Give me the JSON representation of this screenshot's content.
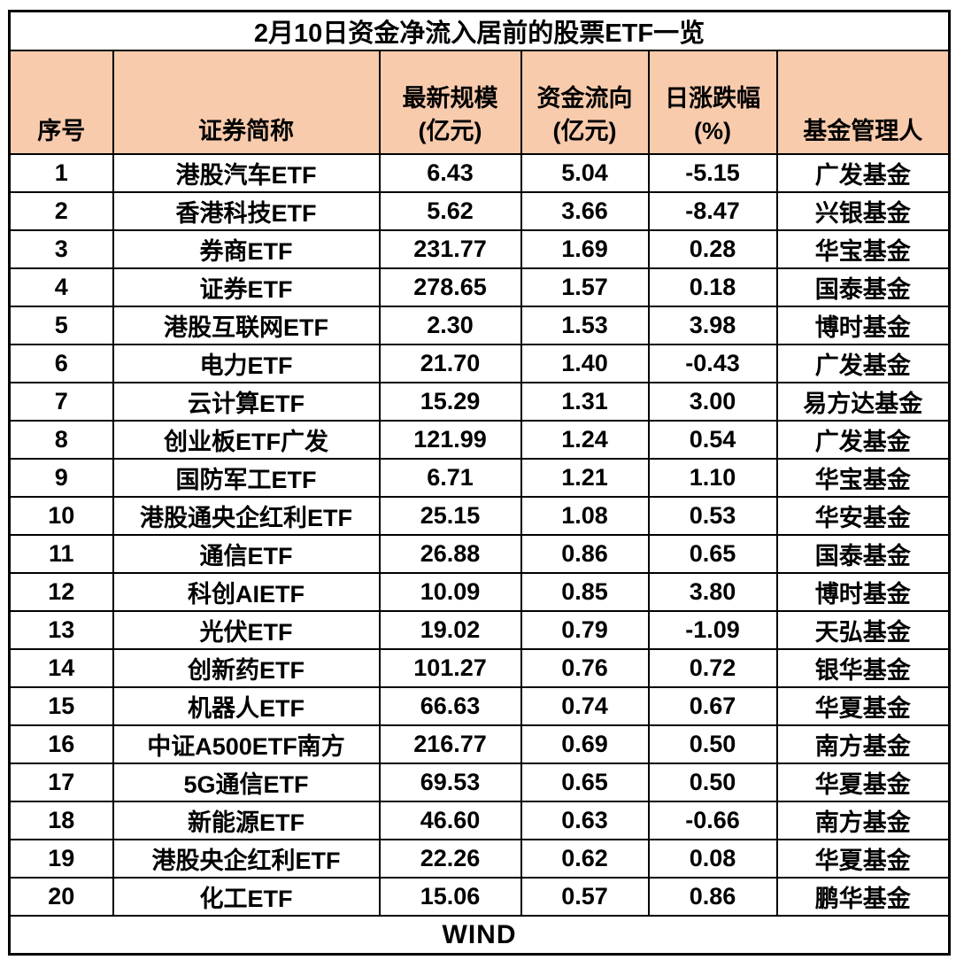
{
  "title": "2月10日资金净流入居前的股票ETF一览",
  "chart_data": {
    "type": "table",
    "title": "2月10日资金净流入居前的股票ETF一览",
    "columns": [
      {
        "key": "index",
        "lines": [
          "序号"
        ]
      },
      {
        "key": "name",
        "lines": [
          "证券简称"
        ]
      },
      {
        "key": "scale",
        "lines": [
          "最新规模",
          "(亿元)"
        ]
      },
      {
        "key": "flow",
        "lines": [
          "资金流向",
          "(亿元)"
        ]
      },
      {
        "key": "change",
        "lines": [
          "日涨跌幅",
          "(%)"
        ]
      },
      {
        "key": "manager",
        "lines": [
          "基金管理人"
        ]
      }
    ],
    "rows": [
      {
        "index": "1",
        "name": "港股汽车ETF",
        "scale": "6.43",
        "flow": "5.04",
        "change": "-5.15",
        "manager": "广发基金"
      },
      {
        "index": "2",
        "name": "香港科技ETF",
        "scale": "5.62",
        "flow": "3.66",
        "change": "-8.47",
        "manager": "兴银基金"
      },
      {
        "index": "3",
        "name": "券商ETF",
        "scale": "231.77",
        "flow": "1.69",
        "change": "0.28",
        "manager": "华宝基金"
      },
      {
        "index": "4",
        "name": "证券ETF",
        "scale": "278.65",
        "flow": "1.57",
        "change": "0.18",
        "manager": "国泰基金"
      },
      {
        "index": "5",
        "name": "港股互联网ETF",
        "scale": "2.30",
        "flow": "1.53",
        "change": "3.98",
        "manager": "博时基金"
      },
      {
        "index": "6",
        "name": "电力ETF",
        "scale": "21.70",
        "flow": "1.40",
        "change": "-0.43",
        "manager": "广发基金"
      },
      {
        "index": "7",
        "name": "云计算ETF",
        "scale": "15.29",
        "flow": "1.31",
        "change": "3.00",
        "manager": "易方达基金"
      },
      {
        "index": "8",
        "name": "创业板ETF广发",
        "scale": "121.99",
        "flow": "1.24",
        "change": "0.54",
        "manager": "广发基金"
      },
      {
        "index": "9",
        "name": "国防军工ETF",
        "scale": "6.71",
        "flow": "1.21",
        "change": "1.10",
        "manager": "华宝基金"
      },
      {
        "index": "10",
        "name": "港股通央企红利ETF",
        "scale": "25.15",
        "flow": "1.08",
        "change": "0.53",
        "manager": "华安基金"
      },
      {
        "index": "11",
        "name": "通信ETF",
        "scale": "26.88",
        "flow": "0.86",
        "change": "0.65",
        "manager": "国泰基金"
      },
      {
        "index": "12",
        "name": "科创AIETF",
        "scale": "10.09",
        "flow": "0.85",
        "change": "3.80",
        "manager": "博时基金"
      },
      {
        "index": "13",
        "name": "光伏ETF",
        "scale": "19.02",
        "flow": "0.79",
        "change": "-1.09",
        "manager": "天弘基金"
      },
      {
        "index": "14",
        "name": "创新药ETF",
        "scale": "101.27",
        "flow": "0.76",
        "change": "0.72",
        "manager": "银华基金"
      },
      {
        "index": "15",
        "name": "机器人ETF",
        "scale": "66.63",
        "flow": "0.74",
        "change": "0.67",
        "manager": "华夏基金"
      },
      {
        "index": "16",
        "name": "中证A500ETF南方",
        "scale": "216.77",
        "flow": "0.69",
        "change": "0.50",
        "manager": "南方基金"
      },
      {
        "index": "17",
        "name": "5G通信ETF",
        "scale": "69.53",
        "flow": "0.65",
        "change": "0.50",
        "manager": "华夏基金"
      },
      {
        "index": "18",
        "name": "新能源ETF",
        "scale": "46.60",
        "flow": "0.63",
        "change": "-0.66",
        "manager": "南方基金"
      },
      {
        "index": "19",
        "name": "港股央企红利ETF",
        "scale": "22.26",
        "flow": "0.62",
        "change": "0.08",
        "manager": "华夏基金"
      },
      {
        "index": "20",
        "name": "化工ETF",
        "scale": "15.06",
        "flow": "0.57",
        "change": "0.86",
        "manager": "鹏华基金"
      }
    ],
    "source": "WIND"
  },
  "colors": {
    "header_bg": "#F8CBAD",
    "border": "#000000",
    "text": "#000000",
    "source_text": "#FF0000"
  }
}
